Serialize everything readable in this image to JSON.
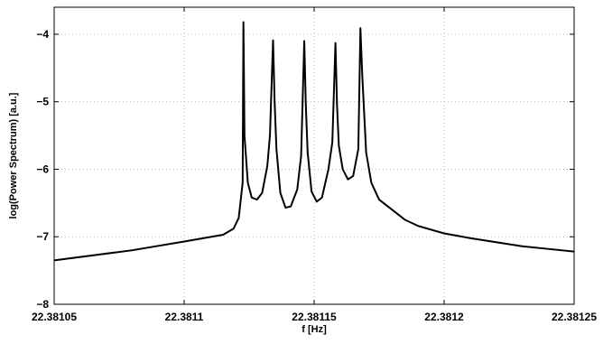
{
  "chart_data": {
    "type": "line",
    "title": "",
    "xlabel": "f [Hz]",
    "ylabel": "log(Power Spectrum) [a.u.]",
    "xlim": [
      22.38105,
      22.38125
    ],
    "ylim": [
      -8,
      -3.6
    ],
    "grid": true,
    "x_ticks": [
      22.38105,
      22.3811,
      22.38115,
      22.3812,
      22.38125
    ],
    "x_tick_labels": [
      "22.38105",
      "22.3811",
      "22.38115",
      "22.3812",
      "22.38125"
    ],
    "y_ticks": [
      -8,
      -7,
      -6,
      -5,
      -4
    ],
    "y_tick_labels": [
      "−8",
      "−7",
      "−6",
      "−5",
      "−4"
    ],
    "line_color": "#000000",
    "series": [
      {
        "x": [
          22.38105,
          22.38108,
          22.3811,
          22.381115,
          22.381119,
          22.381121,
          22.3811225,
          22.3811228,
          22.381123,
          22.3811232,
          22.3811245,
          22.381126,
          22.381128,
          22.38113,
          22.381132,
          22.381133,
          22.3811342,
          22.3811348,
          22.3811355,
          22.381137,
          22.381139,
          22.381141,
          22.3811435,
          22.381145,
          22.3811462,
          22.3811468,
          22.3811475,
          22.381149,
          22.381151,
          22.381153,
          22.3811555,
          22.381157,
          22.3811582,
          22.3811588,
          22.3811595,
          22.381161,
          22.381163,
          22.381165,
          22.381167,
          22.3811678,
          22.3811685,
          22.38117,
          22.381172,
          22.381175,
          22.38118,
          22.381185,
          22.38119,
          22.3812,
          22.38121,
          22.38122,
          22.38123,
          22.38124,
          22.38125
        ],
        "y": [
          -7.35,
          -7.2,
          -7.07,
          -6.97,
          -6.88,
          -6.72,
          -6.2,
          -3.82,
          -4.6,
          -5.5,
          -6.2,
          -6.42,
          -6.45,
          -6.35,
          -5.95,
          -5.5,
          -4.09,
          -5.0,
          -5.7,
          -6.35,
          -6.57,
          -6.55,
          -6.3,
          -5.8,
          -4.1,
          -5.05,
          -5.75,
          -6.33,
          -6.48,
          -6.42,
          -6.0,
          -5.6,
          -4.13,
          -5.05,
          -5.65,
          -6.0,
          -6.15,
          -6.1,
          -5.7,
          -3.91,
          -4.6,
          -5.75,
          -6.2,
          -6.45,
          -6.6,
          -6.75,
          -6.84,
          -6.95,
          -7.02,
          -7.08,
          -7.14,
          -7.18,
          -7.22
        ]
      }
    ]
  }
}
